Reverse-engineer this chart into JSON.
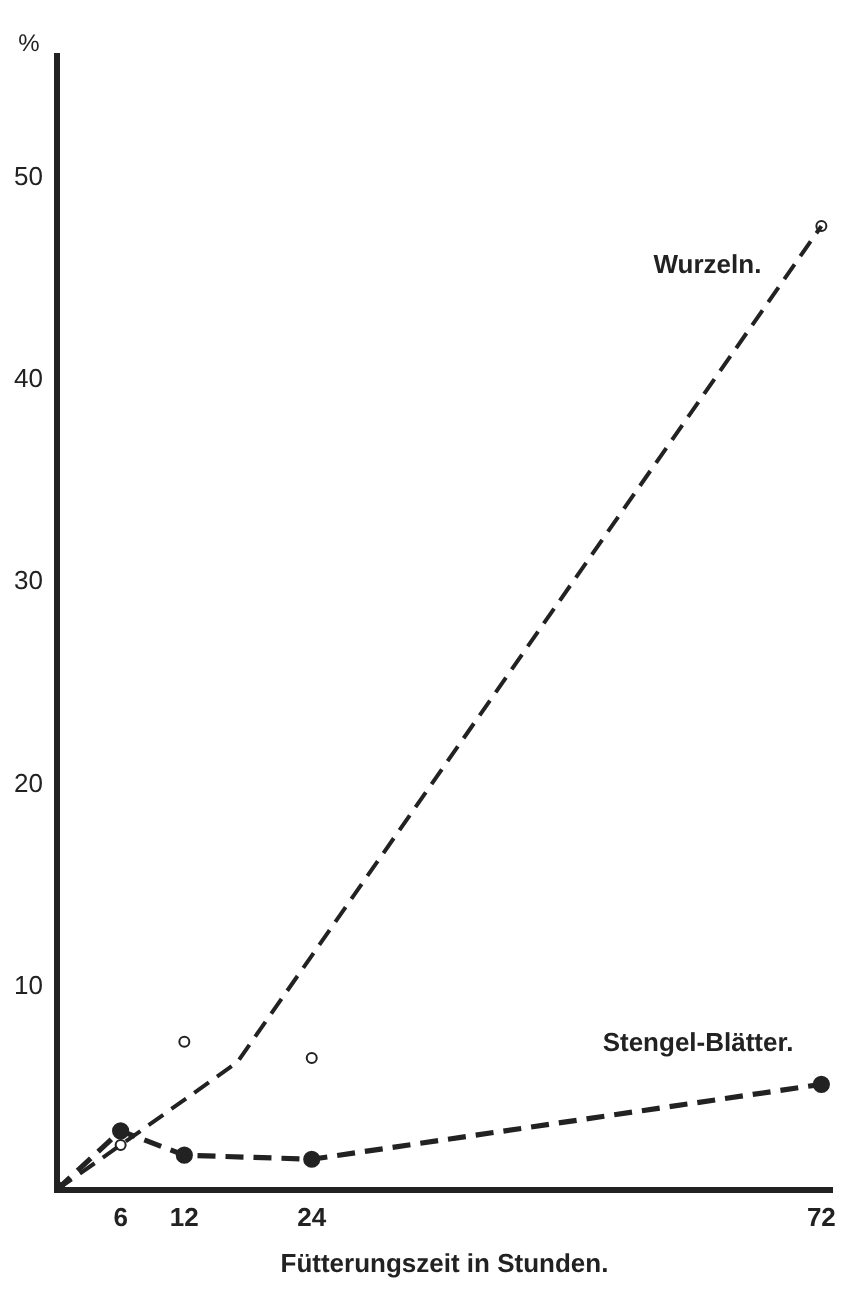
{
  "chart_data": {
    "type": "line",
    "ylabel": "%",
    "xlabel": "Fütterungszeit in Stunden.",
    "xlim": [
      0,
      73
    ],
    "ylim": [
      0,
      56
    ],
    "xticks": [
      6,
      12,
      24,
      72
    ],
    "yticks": [
      10,
      20,
      30,
      40,
      50
    ],
    "grid": false,
    "legend": false,
    "line_style": "dashed",
    "series": [
      {
        "name": "Wurzeln.",
        "type": "line",
        "marker": "none",
        "color": "#222222",
        "x": [
          0,
          6,
          17,
          72
        ],
        "values": [
          0,
          2.2,
          6.3,
          47.6
        ]
      },
      {
        "type": "scatter",
        "marker": "circle",
        "color": "#222222",
        "x": [
          6,
          12,
          24,
          72
        ],
        "values": [
          2.2,
          7.3,
          6.5,
          47.6
        ]
      },
      {
        "name": "Stengel‑Blätter.",
        "type": "line",
        "marker": "circle",
        "color": "#222222",
        "x": [
          0,
          6,
          12,
          24,
          72
        ],
        "values": [
          0,
          2.9,
          1.7,
          1.5,
          5.2
        ]
      }
    ]
  }
}
